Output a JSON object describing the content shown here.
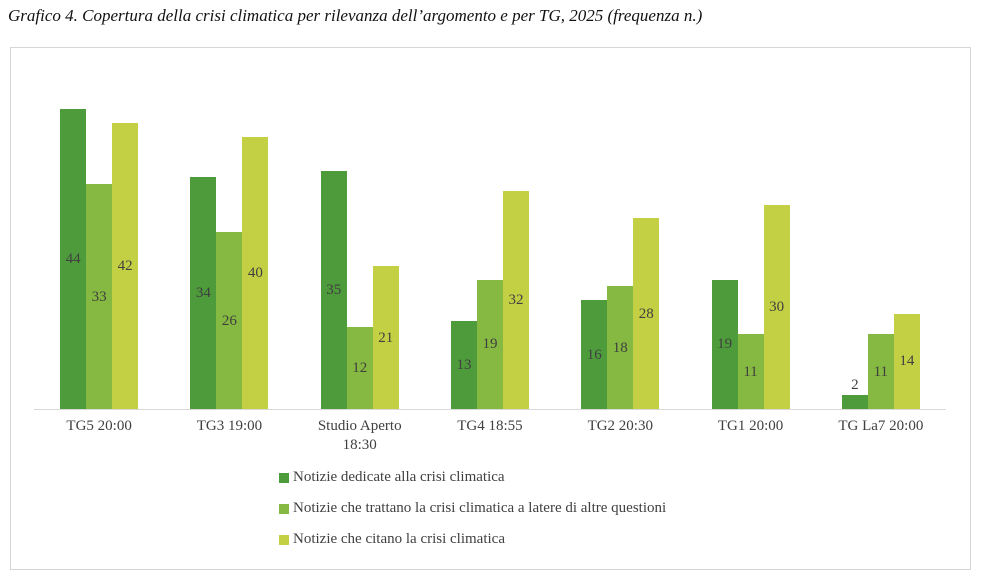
{
  "title": "Grafico 4. Copertura della crisi climatica per rilevanza dell’argomento e per TG, 2025 (frequenza n.)",
  "colors": {
    "axis_line": "#d9d9d9",
    "chart_border": "#d6d6d6",
    "label_text": "#404040"
  },
  "chart_data": {
    "type": "bar",
    "title": "Grafico 4. Copertura della crisi climatica per rilevanza dell’argomento e per TG, 2025 (frequenza n.)",
    "categories": [
      "TG5 20:00",
      "TG3 19:00",
      "Studio Aperto 18:30",
      "TG4 18:55",
      "TG2 20:30",
      "TG1 20:00",
      "TG La7 20:00"
    ],
    "series": [
      {
        "name": "Notizie dedicate alla crisi climatica",
        "color": "#4e9b3c",
        "values": [
          44,
          34,
          35,
          13,
          16,
          19,
          2
        ]
      },
      {
        "name": "Notizie che trattano la crisi climatica a latere di altre questioni",
        "color": "#86b941",
        "values": [
          33,
          26,
          12,
          19,
          18,
          11,
          11
        ]
      },
      {
        "name": "Notizie che citano la crisi climatica",
        "color": "#c4d043",
        "values": [
          42,
          40,
          21,
          32,
          28,
          30,
          14
        ]
      }
    ],
    "xlabel": "",
    "ylabel": "",
    "ylim": [
      0,
      45
    ],
    "grid": false,
    "data_labels": "inside-center",
    "legend_position": "bottom-left-vertical"
  }
}
